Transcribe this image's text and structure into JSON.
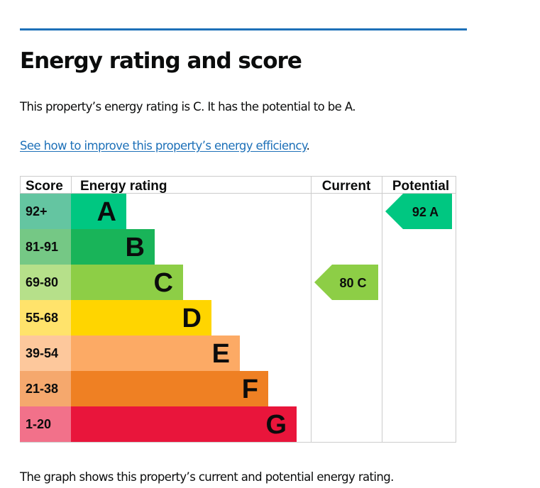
{
  "page": {
    "title": "Energy rating and score",
    "summary": "This property’s energy rating is C. It has the potential to be A.",
    "link_text": "See how to improve this property’s energy efficiency",
    "link_suffix": ".",
    "footnote": "The graph shows this property’s current and potential energy rating."
  },
  "chart_data": {
    "type": "table",
    "title": "Energy rating and score",
    "headers": {
      "score": "Score",
      "rating": "Energy rating",
      "current": "Current",
      "potential": "Potential"
    },
    "bands": [
      {
        "letter": "A",
        "range": "92+",
        "color": "#00c781",
        "score_color": "#64c5a1"
      },
      {
        "letter": "B",
        "range": "81-91",
        "color": "#19b459",
        "score_color": "#75c885"
      },
      {
        "letter": "C",
        "range": "69-80",
        "color": "#8dce46",
        "score_color": "#b6e08a"
      },
      {
        "letter": "D",
        "range": "55-68",
        "color": "#ffd500",
        "score_color": "#ffe36b"
      },
      {
        "letter": "E",
        "range": "39-54",
        "color": "#fcaa65",
        "score_color": "#fdc89c"
      },
      {
        "letter": "F",
        "range": "21-38",
        "color": "#ef8023",
        "score_color": "#f5a86d"
      },
      {
        "letter": "G",
        "range": "1-20",
        "color": "#e9153b",
        "score_color": "#f2718a"
      }
    ],
    "current": {
      "score": 80,
      "band": "C",
      "label": "80  C",
      "color": "#8dce46"
    },
    "potential": {
      "score": 92,
      "band": "A",
      "label": "92  A",
      "color": "#00c781"
    }
  },
  "colors": {
    "link": "#1d70b8",
    "rule": "#1d70b8",
    "grid": "#cccccc",
    "text": "#0b0c0c"
  }
}
